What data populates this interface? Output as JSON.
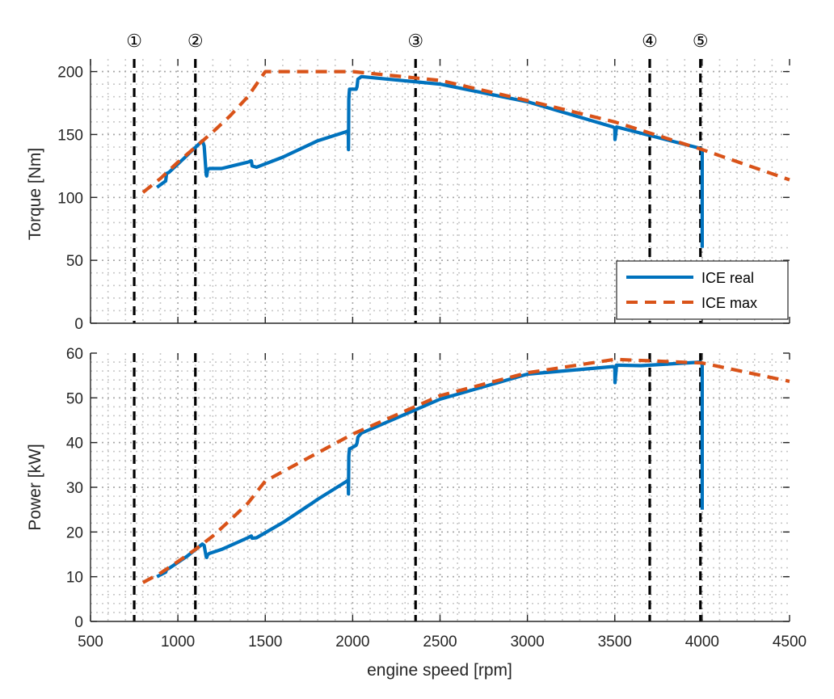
{
  "chart_data": [
    {
      "type": "line",
      "ylabel": "Torque [Nm]",
      "xlabel": "",
      "xlim": [
        500,
        4500
      ],
      "ylim": [
        0,
        210
      ],
      "xticks": [
        500,
        1000,
        1500,
        2000,
        2500,
        3000,
        3500,
        4000,
        4500
      ],
      "yticks": [
        0,
        50,
        100,
        150,
        200
      ],
      "grid": "dotted",
      "legend_position": "bottom-right",
      "series": [
        {
          "name": "ICE real",
          "style": "solid",
          "color": "#0072BD",
          "x": [
            880,
            920,
            930,
            935,
            950,
            1050,
            1140,
            1150,
            1162,
            1165,
            1170,
            1180,
            1250,
            1400,
            1420,
            1425,
            1450,
            1600,
            1770,
            1800,
            1960,
            1975,
            1976,
            1978,
            1980,
            1982,
            1985,
            2020,
            2025,
            2030,
            2040,
            2050,
            2500,
            3000,
            3490,
            3500,
            3501,
            3505,
            3510,
            3650,
            3990,
            4000,
            4000
          ],
          "y": [
            108,
            112,
            113,
            119,
            120,
            133,
            145,
            141,
            118,
            117,
            122,
            123,
            123,
            128,
            129,
            125,
            124,
            132,
            143,
            145,
            152,
            153,
            138,
            178,
            183,
            186,
            186,
            186,
            188,
            194,
            195,
            196,
            190,
            176,
            156,
            155,
            146,
            150,
            156,
            151,
            139,
            137,
            60
          ]
        },
        {
          "name": "ICE max",
          "style": "dashed",
          "color": "#D95319",
          "x": [
            800,
            900,
            1000,
            1100,
            1200,
            1300,
            1400,
            1500,
            1600,
            1700,
            2000,
            2500,
            3000,
            3500,
            4000,
            4500
          ],
          "y": [
            104,
            115,
            128,
            140,
            152,
            165,
            180,
            200,
            200,
            200,
            200,
            193,
            177,
            160,
            138,
            114
          ]
        }
      ]
    },
    {
      "type": "line",
      "ylabel": "Power [kW]",
      "xlabel": "engine speed [rpm]",
      "xlim": [
        500,
        4500
      ],
      "ylim": [
        0,
        60
      ],
      "xticks": [
        500,
        1000,
        1500,
        2000,
        2500,
        3000,
        3500,
        4000,
        4500
      ],
      "yticks": [
        0,
        10,
        20,
        30,
        40,
        50,
        60
      ],
      "grid": "dotted",
      "series": [
        {
          "name": "ICE real",
          "style": "solid",
          "color": "#0072BD",
          "x": [
            880,
            920,
            930,
            935,
            950,
            1050,
            1140,
            1150,
            1162,
            1165,
            1170,
            1180,
            1250,
            1400,
            1420,
            1425,
            1450,
            1600,
            1770,
            1800,
            1960,
            1975,
            1976,
            1978,
            1980,
            1982,
            1985,
            2020,
            2025,
            2030,
            2040,
            2050,
            2500,
            3000,
            3490,
            3500,
            3501,
            3505,
            3510,
            3650,
            3990,
            4000,
            4000
          ],
          "y": [
            10.0,
            10.8,
            11.0,
            11.6,
            11.9,
            14.5,
            17.3,
            17.0,
            14.4,
            14.3,
            14.9,
            15.2,
            16.1,
            18.7,
            19.1,
            18.6,
            18.7,
            22.1,
            26.5,
            27.3,
            31.2,
            31.6,
            28.5,
            36.9,
            38.0,
            38.6,
            38.6,
            39.4,
            39.9,
            41.2,
            41.7,
            42.1,
            49.7,
            55.3,
            57.0,
            56.7,
            53.4,
            55.0,
            57.3,
            57.2,
            58.0,
            57.4,
            25.0
          ]
        },
        {
          "name": "ICE max",
          "style": "dashed",
          "color": "#D95319",
          "x": [
            800,
            900,
            1000,
            1100,
            1200,
            1300,
            1400,
            1500,
            1600,
            1700,
            2000,
            2500,
            3000,
            3500,
            4000,
            4500
          ],
          "y": [
            8.7,
            10.8,
            13.4,
            16.1,
            19.1,
            22.7,
            26.4,
            31.4,
            33.5,
            35.6,
            41.9,
            50.5,
            55.6,
            58.6,
            57.8,
            53.7
          ]
        }
      ]
    }
  ],
  "markers": [
    {
      "label": "①",
      "x": 750
    },
    {
      "label": "②",
      "x": 1100
    },
    {
      "label": "③",
      "x": 2360
    },
    {
      "label": "④",
      "x": 3700
    },
    {
      "label": "⑤",
      "x": 3990
    }
  ],
  "legend": {
    "items": [
      {
        "label": "ICE real",
        "color": "#0072BD",
        "style": "solid"
      },
      {
        "label": "ICE max",
        "color": "#D95319",
        "style": "dashed"
      }
    ]
  }
}
